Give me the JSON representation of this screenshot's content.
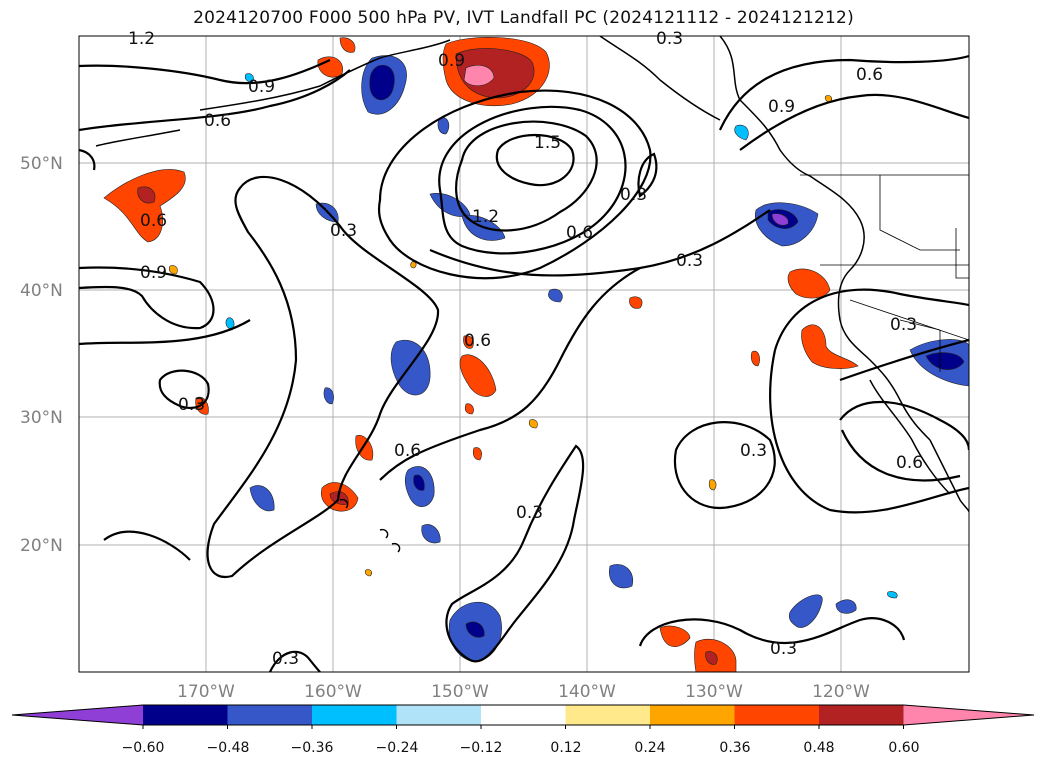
{
  "title": "2024120700 F000 500 hPa PV, IVT Landfall PC (2024121112 - 2024121212)",
  "lat_labels": [
    "50°N",
    "40°N",
    "30°N",
    "20°N"
  ],
  "lon_labels": [
    "170°W",
    "160°W",
    "150°W",
    "140°W",
    "130°W",
    "120°W"
  ],
  "colorbar": {
    "ticks": [
      "−0.60",
      "−0.48",
      "−0.36",
      "−0.24",
      "−0.12",
      "0.12",
      "0.24",
      "0.36",
      "0.48",
      "0.60"
    ],
    "colors": [
      "#8f3fd6",
      "#00008b",
      "#3557c7",
      "#00bfff",
      "#b0e2f8",
      "#ffffff",
      "#ffe98a",
      "#ffa500",
      "#ff4500",
      "#b22222",
      "#ff85ad"
    ]
  },
  "contour_labels": [
    "1.2",
    "0.3",
    "0.9",
    "0.6",
    "0.9",
    "1.5",
    "1.2",
    "0.6",
    "0.3",
    "0.6",
    "0.9",
    "0.3",
    "0.3",
    "0.6",
    "0.3",
    "0.6",
    "0.3",
    "0.3",
    "0.3",
    "0.6",
    "0.3",
    "0.3",
    "0.9",
    "0.6"
  ]
}
